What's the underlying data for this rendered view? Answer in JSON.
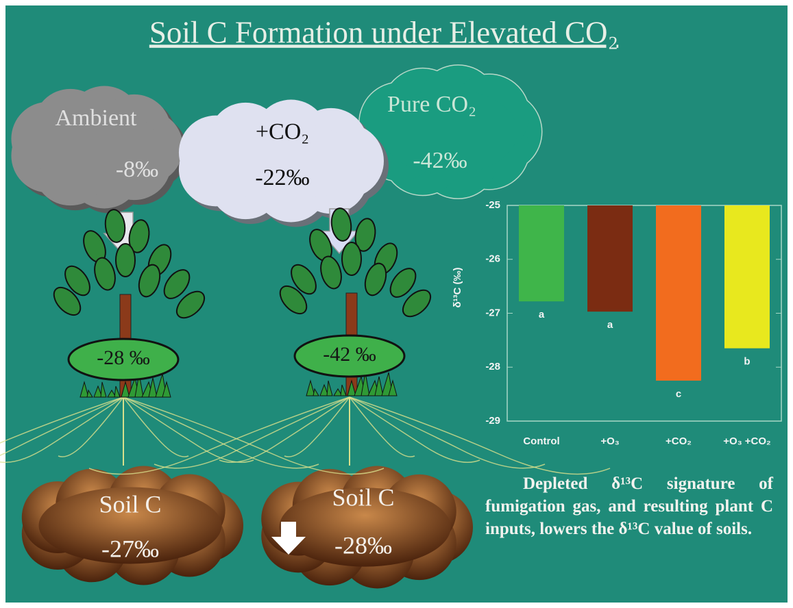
{
  "title": "Soil C Formation under Elevated CO₂",
  "clouds": [
    {
      "label": "Ambient",
      "value": "-8‰"
    },
    {
      "label": "+CO₂",
      "value": "-22‰"
    },
    {
      "label": "Pure CO₂",
      "value": "-42‰"
    }
  ],
  "plants": [
    {
      "value": "-28 ‰"
    },
    {
      "value": "-42 ‰"
    }
  ],
  "soils": [
    {
      "label": "Soil C",
      "value": "-27‰"
    },
    {
      "label": "Soil C",
      "value": "-28‰"
    }
  ],
  "chart_data": {
    "type": "bar",
    "y_label": "δ¹³C (‰)",
    "categories": [
      "Control",
      "+O₃",
      "+CO₂",
      "+O₃ +CO₂"
    ],
    "values": [
      -26.78,
      -26.97,
      -28.25,
      -27.65
    ],
    "colors": [
      "#3fb54a",
      "#7b2c12",
      "#f26c1e",
      "#e8e81e"
    ],
    "letters": [
      "a",
      "a",
      "c",
      "b"
    ],
    "ylim": [
      -29,
      -25
    ],
    "yticks": [
      -25,
      -26,
      -27,
      -28,
      -29
    ]
  },
  "caption": "Depleted δ¹³C signature of fumigation gas, and resulting plant C inputs, lowers the δ¹³C value of soils."
}
